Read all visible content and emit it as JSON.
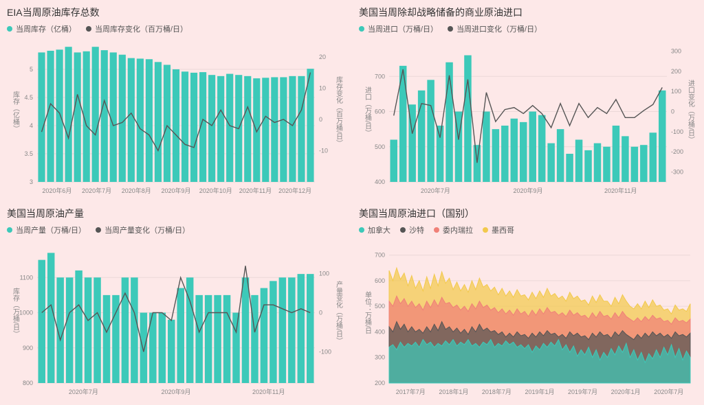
{
  "colors": {
    "bg": "#fde8e8",
    "bar": "#3cc9b9",
    "line": "#555555",
    "canada": "#3cc9b9",
    "saudi": "#555555",
    "venezuela": "#f08078",
    "mexico": "#f2c94c",
    "grid": "#ecd8d8",
    "title": "#333333",
    "legend": "#666666"
  },
  "chart1": {
    "title": "EIA当周原油库存总数",
    "legend_bar": "当周库存（亿桶）",
    "legend_line": "当周库存变化（百万桶/日）",
    "ylabel_left": "库存（亿桶）",
    "ylabel_right": "库存变化（百万桶/日）",
    "y_left": {
      "min": 3.0,
      "max": 5.5,
      "ticks": [
        3.0,
        3.5,
        4.0,
        4.5,
        5.0
      ]
    },
    "y_right": {
      "min": -20,
      "max": 25,
      "ticks": [
        -10,
        0,
        10,
        20
      ]
    },
    "x_labels": [
      "2020年6月",
      "2020年7月",
      "2020年8月",
      "2020年9月",
      "2020年10月",
      "2020年11月",
      "2020年12月"
    ],
    "bars": [
      5.3,
      5.33,
      5.35,
      5.4,
      5.3,
      5.32,
      5.4,
      5.34,
      5.3,
      5.26,
      5.2,
      5.19,
      5.18,
      5.13,
      5.08,
      5.0,
      4.96,
      4.94,
      4.95,
      4.9,
      4.88,
      4.92,
      4.9,
      4.88,
      4.84,
      4.85,
      4.86,
      4.86,
      4.88,
      4.88,
      5.01
    ],
    "line": [
      -4,
      5,
      2,
      -6,
      8,
      -2,
      -5,
      6,
      -2,
      -1,
      2,
      -3,
      -5,
      -10,
      -2,
      -5,
      -8,
      -9,
      0,
      -2,
      3,
      -2,
      -3,
      4,
      -4,
      1,
      -1,
      0,
      -2,
      3,
      15
    ]
  },
  "chart2": {
    "title": "美国当周除却战略储备的商业原油进口",
    "legend_bar": "当周进口（万桶/日）",
    "legend_line": "当周进口变化（万桶/日）",
    "ylabel_left": "进口（万桶/日）",
    "ylabel_right": "进口变化（万桶/日）",
    "y_left": {
      "min": 400,
      "max": 800,
      "ticks": [
        400,
        500,
        600,
        700
      ]
    },
    "y_right": {
      "min": -350,
      "max": 350,
      "ticks": [
        -300,
        -200,
        -100,
        0,
        100,
        200,
        300
      ]
    },
    "x_labels": [
      "2020年7月",
      "2020年9月",
      "2020年11月"
    ],
    "bars": [
      520,
      730,
      620,
      660,
      690,
      560,
      740,
      600,
      760,
      505,
      600,
      550,
      560,
      580,
      570,
      600,
      590,
      510,
      550,
      480,
      520,
      490,
      510,
      500,
      560,
      530,
      500,
      505,
      540,
      660
    ],
    "line": [
      -20,
      210,
      -110,
      40,
      30,
      -130,
      180,
      -140,
      160,
      -255,
      95,
      -50,
      10,
      20,
      -10,
      30,
      -10,
      -80,
      40,
      -70,
      40,
      -30,
      20,
      -10,
      60,
      -30,
      -30,
      5,
      35,
      120
    ]
  },
  "chart3": {
    "title": "美国当周原油产量",
    "legend_bar": "当周产量（万桶/日）",
    "legend_line": "当周产量变化（万桶/日）",
    "ylabel_left": "库存（万桶/日）",
    "ylabel_right": "产量变化（万桶/日）",
    "y_left": {
      "min": 800,
      "max": 1200,
      "ticks": [
        800,
        900,
        1000,
        1100
      ]
    },
    "y_right": {
      "min": -180,
      "max": 180,
      "ticks": [
        -100,
        0,
        100
      ]
    },
    "x_labels": [
      "2020年7月",
      "2020年9月",
      "2020年11月"
    ],
    "bars": [
      1150,
      1170,
      1100,
      1100,
      1120,
      1100,
      1100,
      1050,
      1050,
      1100,
      1100,
      1000,
      1000,
      1000,
      980,
      1070,
      1100,
      1050,
      1050,
      1050,
      1050,
      1000,
      1100,
      1050,
      1070,
      1090,
      1100,
      1100,
      1110,
      1110
    ],
    "line": [
      0,
      20,
      -70,
      0,
      20,
      -20,
      0,
      -50,
      0,
      50,
      0,
      -100,
      0,
      0,
      -20,
      90,
      30,
      -50,
      0,
      0,
      0,
      -50,
      120,
      -50,
      20,
      20,
      10,
      0,
      10,
      0
    ]
  },
  "chart4": {
    "title": "美国当周原油进口（国别）",
    "legend": [
      "加拿大",
      "沙特",
      "委内瑞拉",
      "墨西哥"
    ],
    "ylabel": "单位：万桶/日",
    "y": {
      "min": 200,
      "max": 750,
      "ticks": [
        200,
        300,
        400,
        500,
        600,
        700
      ]
    },
    "x_labels": [
      "2017年7月",
      "2018年1月",
      "2018年7月",
      "2019年1月",
      "2019年7月",
      "2020年1月",
      "2020年7月"
    ],
    "series": {
      "canada": [
        340,
        350,
        330,
        360,
        340,
        355,
        345,
        360,
        340,
        370,
        350,
        360,
        340,
        355,
        345,
        365,
        350,
        370,
        345,
        360,
        350,
        370,
        345,
        355,
        340,
        360,
        350,
        370,
        340,
        355,
        345,
        365,
        350,
        360,
        340,
        350,
        335,
        350,
        320,
        345,
        330,
        355,
        340,
        360,
        345,
        370,
        330,
        350,
        320,
        345,
        305,
        330,
        310,
        340,
        300,
        330,
        290,
        320,
        300,
        335,
        310,
        345,
        320,
        355,
        300,
        330,
        290,
        320,
        280,
        315,
        295,
        330,
        300,
        340,
        310,
        350,
        300,
        335,
        290,
        325,
        300
      ],
      "saudi": [
        420,
        400,
        440,
        410,
        430,
        400,
        420,
        400,
        410,
        395,
        420,
        400,
        430,
        405,
        440,
        410,
        420,
        400,
        415,
        395,
        410,
        390,
        420,
        400,
        430,
        405,
        415,
        400,
        405,
        390,
        400,
        380,
        395,
        380,
        400,
        385,
        390,
        375,
        395,
        380,
        400,
        385,
        405,
        390,
        395,
        380,
        390,
        375,
        400,
        385,
        395,
        380,
        385,
        370,
        395,
        380,
        400,
        385,
        390,
        375,
        400,
        385,
        405,
        390,
        380,
        370,
        390,
        375,
        395,
        380,
        400,
        385,
        395,
        380,
        390,
        375,
        400,
        385,
        390,
        380,
        395
      ],
      "venezuela": [
        520,
        500,
        540,
        510,
        530,
        500,
        520,
        495,
        510,
        485,
        520,
        495,
        525,
        500,
        535,
        510,
        515,
        495,
        505,
        485,
        500,
        480,
        510,
        490,
        520,
        495,
        505,
        485,
        495,
        475,
        490,
        470,
        485,
        465,
        490,
        470,
        480,
        460,
        485,
        465,
        490,
        470,
        495,
        475,
        480,
        465,
        475,
        460,
        485,
        465,
        475,
        460,
        465,
        450,
        475,
        455,
        480,
        460,
        465,
        450,
        475,
        455,
        480,
        460,
        450,
        440,
        455,
        440,
        460,
        445,
        465,
        450,
        455,
        440,
        445,
        430,
        455,
        440,
        445,
        435,
        450
      ],
      "mexico": [
        640,
        600,
        650,
        605,
        630,
        580,
        620,
        570,
        600,
        560,
        615,
        570,
        625,
        580,
        635,
        590,
        610,
        565,
        595,
        560,
        585,
        555,
        600,
        565,
        610,
        575,
        585,
        560,
        575,
        545,
        570,
        540,
        560,
        535,
        565,
        540,
        545,
        525,
        555,
        530,
        560,
        535,
        570,
        540,
        550,
        530,
        540,
        520,
        555,
        530,
        540,
        520,
        525,
        505,
        540,
        515,
        545,
        520,
        520,
        500,
        535,
        510,
        545,
        520,
        500,
        490,
        510,
        490,
        520,
        495,
        525,
        500,
        505,
        485,
        490,
        470,
        505,
        485,
        490,
        480,
        510
      ]
    }
  }
}
